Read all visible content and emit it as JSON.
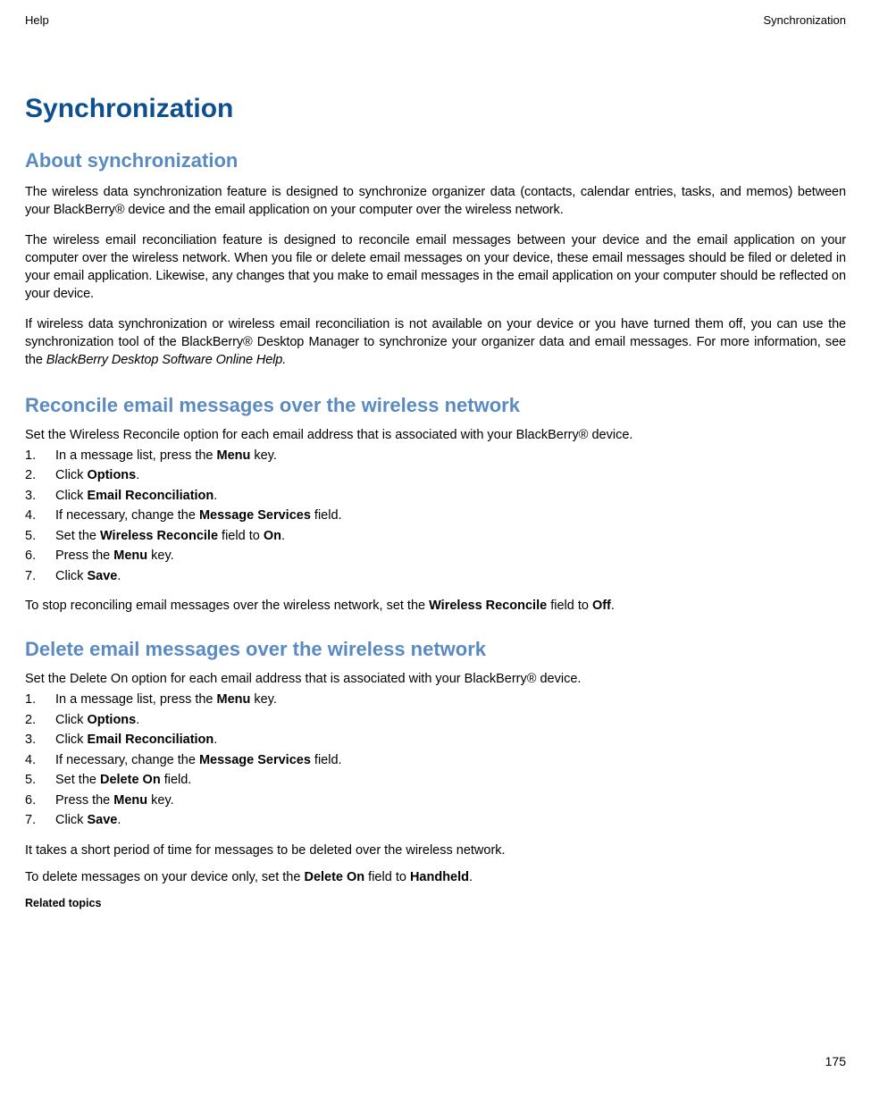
{
  "header": {
    "left": "Help",
    "right": "Synchronization"
  },
  "page_title": "Synchronization",
  "section_about": {
    "title": "About synchronization",
    "p1": "The wireless data synchronization feature is designed to synchronize organizer data (contacts, calendar entries, tasks, and memos) between your BlackBerry® device and the email application on your computer over the wireless network.",
    "p2": "The wireless email reconciliation feature is designed to reconcile email messages between your device and the email application on your computer over the wireless network. When you file or delete email messages on your device, these email messages should be filed or deleted in your email application. Likewise, any changes that you make to email messages in the email application on your computer should be reflected on your device.",
    "p3_prefix": "If wireless data synchronization or wireless email reconciliation is not available on your device or you have turned them off, you can use the synchronization tool of the BlackBerry® Desktop Manager to synchronize your organizer data and email messages. For more information, see the  ",
    "p3_italic": "BlackBerry Desktop Software Online Help."
  },
  "section_reconcile": {
    "title": "Reconcile email messages over the wireless network",
    "intro": "Set the Wireless Reconcile option for each email address that is associated with your BlackBerry® device.",
    "steps": {
      "s1_num": "1.",
      "s1_a": "In a message list, press the ",
      "s1_b": "Menu",
      "s1_c": " key.",
      "s2_num": "2.",
      "s2_a": "Click ",
      "s2_b": "Options",
      "s2_c": ".",
      "s3_num": "3.",
      "s3_a": "Click ",
      "s3_b": "Email Reconciliation",
      "s3_c": ".",
      "s4_num": "4.",
      "s4_a": "If necessary, change the ",
      "s4_b": "Message Services",
      "s4_c": " field.",
      "s5_num": "5.",
      "s5_a": "Set the ",
      "s5_b": "Wireless Reconcile",
      "s5_c": " field to ",
      "s5_d": "On",
      "s5_e": ".",
      "s6_num": "6.",
      "s6_a": "Press the ",
      "s6_b": "Menu",
      "s6_c": " key.",
      "s7_num": "7.",
      "s7_a": "Click ",
      "s7_b": "Save",
      "s7_c": "."
    },
    "followup_a": "To stop reconciling email messages over the wireless network, set the ",
    "followup_b": "Wireless Reconcile",
    "followup_c": " field to ",
    "followup_d": "Off",
    "followup_e": "."
  },
  "section_delete": {
    "title": "Delete email messages over the wireless network",
    "intro": "Set the Delete On option for each email address that is associated with your BlackBerry® device.",
    "steps": {
      "s1_num": "1.",
      "s1_a": "In a message list, press the ",
      "s1_b": "Menu",
      "s1_c": " key.",
      "s2_num": "2.",
      "s2_a": "Click ",
      "s2_b": "Options",
      "s2_c": ".",
      "s3_num": "3.",
      "s3_a": "Click ",
      "s3_b": "Email Reconciliation",
      "s3_c": ".",
      "s4_num": "4.",
      "s4_a": "If necessary, change the ",
      "s4_b": "Message Services",
      "s4_c": " field.",
      "s5_num": "5.",
      "s5_a": "Set the ",
      "s5_b": "Delete On",
      "s5_c": " field.",
      "s6_num": "6.",
      "s6_a": "Press the ",
      "s6_b": "Menu",
      "s6_c": " key.",
      "s7_num": "7.",
      "s7_a": "Click ",
      "s7_b": "Save",
      "s7_c": "."
    },
    "followup1": "It takes a short period of time for messages to be deleted over the wireless network.",
    "followup2_a": "To delete messages on your device only, set the ",
    "followup2_b": "Delete On",
    "followup2_c": " field to ",
    "followup2_d": "Handheld",
    "followup2_e": ".",
    "related": "Related topics"
  },
  "page_number": "175"
}
